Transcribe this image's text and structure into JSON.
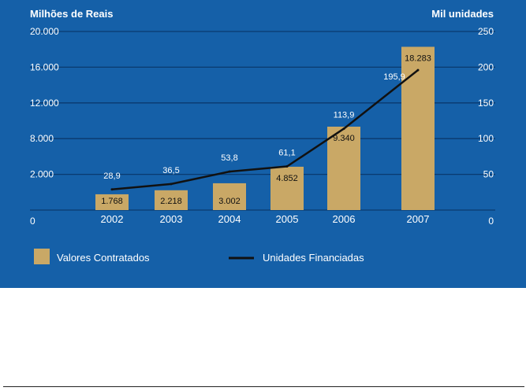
{
  "chart_data": {
    "type": "bar",
    "categories": [
      "2002",
      "2003",
      "2004",
      "2005",
      "2006",
      "2007"
    ],
    "series": [
      {
        "name": "Valores Contratados",
        "kind": "bar",
        "axis": "left",
        "values": [
          1768,
          2218,
          3002,
          4852,
          9340,
          18283
        ],
        "labels": [
          "1.768",
          "2.218",
          "3.002",
          "4.852",
          "9.340",
          "18.283"
        ]
      },
      {
        "name": "Unidades Financiadas",
        "kind": "line",
        "axis": "right",
        "values": [
          28.9,
          36.5,
          53.8,
          61.1,
          113.9,
          195.9
        ],
        "labels": [
          "28,9",
          "36,5",
          "53,8",
          "61,1",
          "113,9",
          "195,9"
        ]
      }
    ],
    "ylabel_left": "Milhões de Reais",
    "ylabel_right": "Mil unidades",
    "ylim_left": [
      0,
      20000
    ],
    "ylim_right": [
      0,
      250
    ],
    "yticks_left": [
      "0",
      "2.000",
      "8.000",
      "12.000",
      "16.000",
      "20.000"
    ],
    "yticks_right": [
      "0",
      "50",
      "100",
      "150",
      "200",
      "250"
    ],
    "legend": [
      "Valores Contratados",
      "Unidades Financiadas"
    ],
    "legend_position": "bottom",
    "grid": true,
    "colors": {
      "background": "#1560a8",
      "bar": "#c9a866",
      "line": "#111111",
      "grid": "#0a3a6e",
      "text": "#ffffff"
    }
  }
}
